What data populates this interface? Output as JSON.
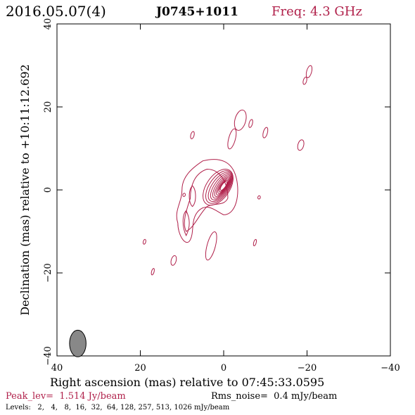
{
  "header": {
    "date": "2016.05.07(4)",
    "source": "J0745+1011",
    "freq": "Freq: 4.3 GHz"
  },
  "footer": {
    "peak": "Peak_lev=  1.514 Jy/beam",
    "rms": "Rms_noise=  0.4 mJy/beam",
    "levels": "Levels:   2,   4,   8,  16,  32,  64, 128, 257, 513, 1026 mJy/beam"
  },
  "colors": {
    "contour": "#b0204a",
    "accent": "#b0204a",
    "beam_fill": "#888888",
    "axis": "#000000"
  },
  "chart_data": {
    "type": "contour",
    "xlabel": "Right ascension (mas) relative to 07:45:33.0595",
    "ylabel": "Declination (mas) relative to +10:11:12.692",
    "xlim": [
      40,
      -40
    ],
    "ylim": [
      -40,
      40
    ],
    "xticks": [
      "40",
      "20",
      "0",
      "−20",
      "−40"
    ],
    "yticks": [
      "−40",
      "−20",
      "0",
      "20",
      "40"
    ],
    "xtick_values": [
      40,
      20,
      0,
      -20,
      -40
    ],
    "ytick_values": [
      -40,
      -20,
      0,
      20,
      40
    ],
    "grid": false,
    "levels_mJy": [
      2,
      4,
      8,
      16,
      32,
      64,
      128,
      257,
      513,
      1026
    ],
    "peak_Jy_per_beam": 1.514,
    "rms_mJy_per_beam": 0.4,
    "beam": {
      "ra_mas": 35,
      "dec_mas": -37,
      "major_mas": 4,
      "minor_mas": 1.8,
      "pa_deg": 0
    },
    "core": {
      "ra_mas": 0,
      "dec_mas": 1
    },
    "components": [
      {
        "ra_mas": -20.5,
        "dec_mas": 28.5,
        "w": 0.6,
        "h": 1.5
      },
      {
        "ra_mas": -19.5,
        "dec_mas": 26.3,
        "w": 0.4,
        "h": 0.9
      },
      {
        "ra_mas": -4,
        "dec_mas": 16.8,
        "w": 1.3,
        "h": 2.5
      },
      {
        "ra_mas": -6.5,
        "dec_mas": 16.0,
        "w": 0.4,
        "h": 1.0
      },
      {
        "ra_mas": -10,
        "dec_mas": 13.8,
        "w": 0.5,
        "h": 1.3
      },
      {
        "ra_mas": -2,
        "dec_mas": 12.3,
        "w": 0.8,
        "h": 2.5
      },
      {
        "ra_mas": 7.5,
        "dec_mas": 13.2,
        "w": 0.4,
        "h": 0.9
      },
      {
        "ra_mas": -18.5,
        "dec_mas": 10.8,
        "w": 0.7,
        "h": 1.3
      },
      {
        "ra_mas": -8.5,
        "dec_mas": -1.8,
        "w": 0.3,
        "h": 0.4
      },
      {
        "ra_mas": -7.5,
        "dec_mas": -12.7,
        "w": 0.3,
        "h": 0.8
      },
      {
        "ra_mas": 3.0,
        "dec_mas": -13.5,
        "w": 1.0,
        "h": 3.5
      },
      {
        "ra_mas": 19.0,
        "dec_mas": -12.5,
        "w": 0.3,
        "h": 0.6
      },
      {
        "ra_mas": 12.0,
        "dec_mas": -17.0,
        "w": 0.6,
        "h": 1.2
      },
      {
        "ra_mas": 17.0,
        "dec_mas": -19.7,
        "w": 0.3,
        "h": 0.8
      },
      {
        "ra_mas": 9.5,
        "dec_mas": -1.2,
        "w": 0.3,
        "h": 0.4
      }
    ]
  }
}
